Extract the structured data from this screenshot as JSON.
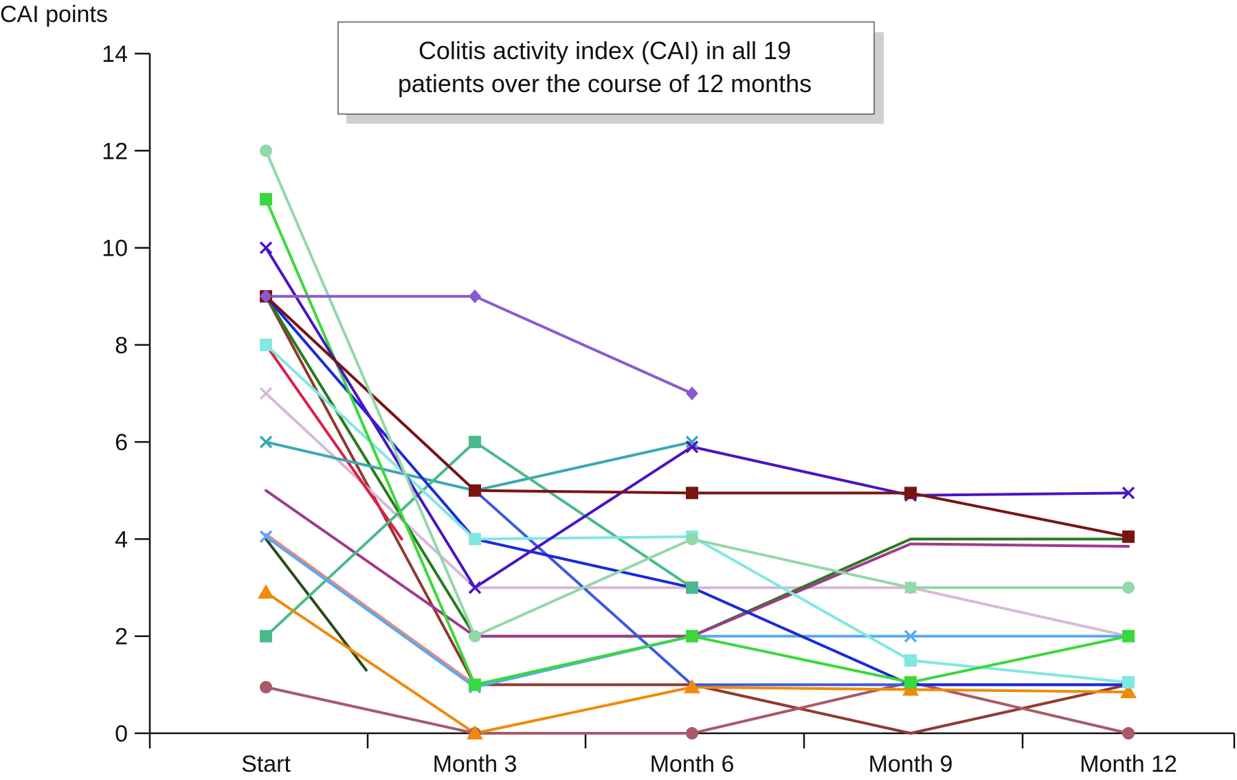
{
  "chart_data": {
    "type": "line",
    "title_lines": [
      "Colitis activity index (CAI) in all 19",
      "patients over the course of 12 months"
    ],
    "ylabel": "CAI points",
    "xlabel": "",
    "categories": [
      "Start",
      "Month 3",
      "Month 6",
      "Month 9",
      "Month 12"
    ],
    "yticks": [
      0,
      2,
      4,
      6,
      8,
      10,
      12,
      14
    ],
    "ylim": [
      0,
      14
    ],
    "grid": false,
    "legend": "none",
    "series": [
      {
        "color": "#8f3a2e",
        "marker": "none",
        "points": [
          {
            "x": 0,
            "y": 9
          },
          {
            "x": 1,
            "y": 1
          },
          {
            "x": 2,
            "y": 1
          },
          {
            "x": 3,
            "y": 0
          },
          {
            "x": 4,
            "y": 1
          }
        ]
      },
      {
        "color": "#8a9ad8",
        "marker": "none",
        "points": [
          {
            "x": 0,
            "y": 9
          },
          {
            "x": 0.5,
            "y": 5.5
          }
        ]
      },
      {
        "color": "#d8b8d8",
        "marker": "x",
        "points": [
          {
            "x": 0,
            "y": 7
          },
          {
            "x": 1,
            "y": 3
          },
          {
            "x": 2,
            "y": 3
          },
          {
            "x": 3,
            "y": 3
          },
          {
            "x": 4,
            "y": 2
          }
        ]
      },
      {
        "color": "#dd1e4a",
        "marker": "none",
        "points": [
          {
            "x": 0,
            "y": 8
          },
          {
            "x": 0.65,
            "y": 4
          }
        ]
      },
      {
        "color": "#2a7a1e",
        "marker": "none",
        "points": [
          {
            "x": 0,
            "y": 9
          },
          {
            "x": 1,
            "y": 2
          },
          {
            "x": 2,
            "y": 2
          },
          {
            "x": 3,
            "y": 4
          },
          {
            "x": 4,
            "y": 4
          }
        ]
      },
      {
        "color": "#9e3a8e",
        "marker": "none",
        "points": [
          {
            "x": 0,
            "y": 5
          },
          {
            "x": 1,
            "y": 2
          },
          {
            "x": 2,
            "y": 2
          },
          {
            "x": 3,
            "y": 3.9
          },
          {
            "x": 4,
            "y": 3.85
          }
        ]
      },
      {
        "color": "#f08878",
        "marker": "none",
        "points": [
          {
            "x": 0,
            "y": 4.1
          },
          {
            "x": 1,
            "y": 1
          }
        ]
      },
      {
        "color": "#2a4a1a",
        "marker": "none",
        "points": [
          {
            "x": 0,
            "y": 4
          },
          {
            "x": 0.48,
            "y": 1.3
          }
        ]
      },
      {
        "color": "#3aa8b4",
        "marker": "x",
        "points": [
          {
            "x": 0,
            "y": 6
          },
          {
            "x": 1,
            "y": 5
          },
          {
            "x": 2,
            "y": 6
          }
        ]
      },
      {
        "color": "#4aba8a",
        "marker": "square",
        "points": [
          {
            "x": 0,
            "y": 2
          },
          {
            "x": 1,
            "y": 6
          },
          {
            "x": 2,
            "y": 3
          }
        ]
      },
      {
        "color": "#a85a6a",
        "marker": "circle",
        "points": [
          {
            "x": 0,
            "y": 0.95
          },
          {
            "x": 1,
            "y": 0
          },
          {
            "x": 2,
            "y": 0
          },
          {
            "x": 3,
            "y": 1.05
          },
          {
            "x": 4,
            "y": 0
          }
        ]
      },
      {
        "color": "#f08a0a",
        "marker": "triangle",
        "points": [
          {
            "x": 0,
            "y": 2.9
          },
          {
            "x": 1,
            "y": 0
          },
          {
            "x": 2,
            "y": 0.95
          },
          {
            "x": 3,
            "y": 0.9
          },
          {
            "x": 4,
            "y": 0.85
          }
        ]
      },
      {
        "color": "#5aa8f0",
        "marker": "x",
        "points": [
          {
            "x": 0,
            "y": 4.05
          },
          {
            "x": 1,
            "y": 0.95
          },
          {
            "x": 2,
            "y": 2
          },
          {
            "x": 3,
            "y": 2
          },
          {
            "x": 4,
            "y": 2
          }
        ]
      },
      {
        "color": "#3a5ae0",
        "marker": "none",
        "points": [
          {
            "x": 0,
            "y": 9
          },
          {
            "x": 1,
            "y": 5
          },
          {
            "x": 2,
            "y": 1
          },
          {
            "x": 3,
            "y": 1
          },
          {
            "x": 4,
            "y": 1
          }
        ]
      },
      {
        "color": "#1a2ad8",
        "marker": "none",
        "points": [
          {
            "x": 0,
            "y": 9
          },
          {
            "x": 1,
            "y": 4
          },
          {
            "x": 2,
            "y": 3
          },
          {
            "x": 3,
            "y": 1
          },
          {
            "x": 4,
            "y": 1
          }
        ]
      },
      {
        "color": "#80e8e0",
        "marker": "square",
        "points": [
          {
            "x": 0,
            "y": 8
          },
          {
            "x": 1,
            "y": 4
          },
          {
            "x": 2,
            "y": 4.05
          },
          {
            "x": 3,
            "y": 1.5
          },
          {
            "x": 4,
            "y": 1.05
          }
        ]
      },
      {
        "color": "#3ad83a",
        "marker": "square",
        "points": [
          {
            "x": 0,
            "y": 11
          },
          {
            "x": 1,
            "y": 1
          },
          {
            "x": 2,
            "y": 2
          },
          {
            "x": 3,
            "y": 1.05
          },
          {
            "x": 4,
            "y": 2
          }
        ]
      },
      {
        "color": "#4a14c4",
        "marker": "x",
        "points": [
          {
            "x": 0,
            "y": 10
          },
          {
            "x": 1,
            "y": 3
          },
          {
            "x": 2,
            "y": 5.9
          },
          {
            "x": 3,
            "y": 4.9
          },
          {
            "x": 4,
            "y": 4.95
          }
        ]
      },
      {
        "color": "#7a1410",
        "marker": "square",
        "points": [
          {
            "x": 0,
            "y": 9
          },
          {
            "x": 1,
            "y": 5
          },
          {
            "x": 2,
            "y": 4.95
          },
          {
            "x": 3,
            "y": 4.95
          },
          {
            "x": 4,
            "y": 4.05
          }
        ]
      },
      {
        "color": "#92d8a8",
        "marker": "circle",
        "points": [
          {
            "x": 0,
            "y": 12
          },
          {
            "x": 1,
            "y": 2
          },
          {
            "x": 2,
            "y": 4
          },
          {
            "x": 3,
            "y": 3
          },
          {
            "x": 4,
            "y": 3
          }
        ]
      },
      {
        "color": "#8a5ad0",
        "marker": "diamond",
        "points": [
          {
            "x": 0,
            "y": 9
          },
          {
            "x": 1,
            "y": 9
          },
          {
            "x": 2,
            "y": 7
          }
        ]
      }
    ]
  }
}
